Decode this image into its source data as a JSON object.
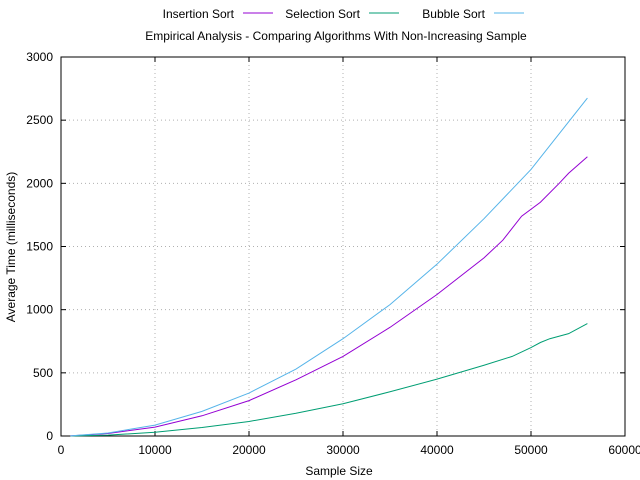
{
  "chart_data": {
    "type": "line",
    "title": "Empirical Analysis - Comparing Algorithms With Non-Increasing Sample",
    "xlabel": "Sample Size",
    "ylabel": "Average Time (milliseconds)",
    "xlim": [
      0,
      60000
    ],
    "ylim": [
      0,
      3000
    ],
    "xticks": [
      0,
      10000,
      20000,
      30000,
      40000,
      50000,
      60000
    ],
    "yticks": [
      0,
      500,
      1000,
      1500,
      2000,
      2500,
      3000
    ],
    "grid": true,
    "legend_position": "top",
    "series": [
      {
        "name": "Insertion Sort",
        "color": "#9400d3",
        "x": [
          1000,
          5000,
          10000,
          15000,
          20000,
          25000,
          30000,
          35000,
          40000,
          45000,
          47000,
          49000,
          51000,
          53000,
          54000,
          56000
        ],
        "y": [
          1,
          20,
          70,
          160,
          280,
          445,
          630,
          860,
          1120,
          1410,
          1550,
          1740,
          1850,
          2000,
          2080,
          2210
        ]
      },
      {
        "name": "Selection Sort",
        "color": "#009e73",
        "x": [
          1000,
          5000,
          10000,
          15000,
          20000,
          25000,
          30000,
          35000,
          40000,
          45000,
          48000,
          50000,
          51000,
          52000,
          54000,
          56000
        ],
        "y": [
          0,
          7,
          30,
          67,
          115,
          180,
          255,
          350,
          450,
          560,
          630,
          700,
          740,
          770,
          810,
          890
        ]
      },
      {
        "name": "Bubble Sort",
        "color": "#56b4e9",
        "x": [
          1000,
          5000,
          10000,
          15000,
          20000,
          25000,
          30000,
          35000,
          40000,
          45000,
          50000,
          56000
        ],
        "y": [
          1,
          24,
          86,
          195,
          340,
          530,
          770,
          1040,
          1360,
          1720,
          2110,
          2675
        ]
      }
    ]
  }
}
